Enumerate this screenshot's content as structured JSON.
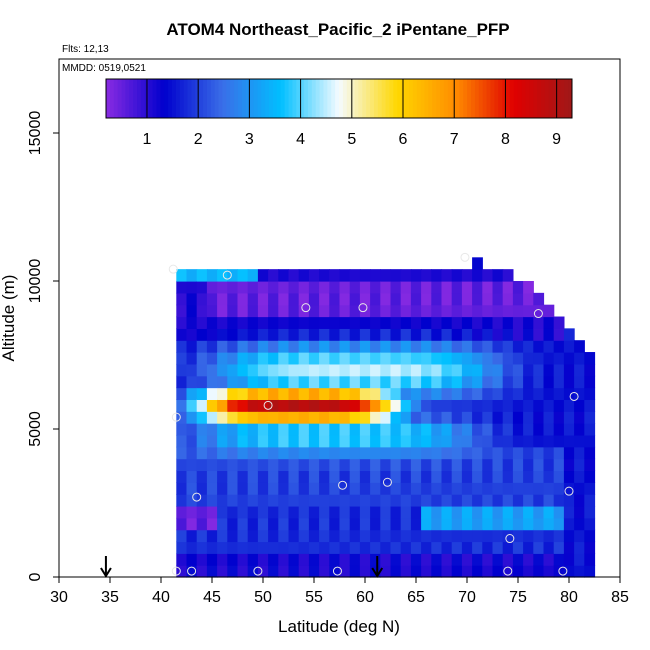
{
  "chart_data": {
    "type": "heatmap",
    "title": "ATOM4 Northeast_Pacific_2 iPentane_PFP",
    "flights_label": "Flts: 12,13",
    "dates_label": "MMDD: 0519,0521",
    "xlabel": "Latitude (deg N)",
    "ylabel": "Altitude (m)",
    "xlim": [
      30,
      85
    ],
    "ylim": [
      0,
      17500
    ],
    "x_ticks": [
      "30",
      "35",
      "40",
      "45",
      "50",
      "55",
      "60",
      "65",
      "70",
      "75",
      "80",
      "85"
    ],
    "y_ticks": [
      "0",
      "5000",
      "10000",
      "15000"
    ],
    "colorbar": {
      "range": [
        0.2,
        9.3
      ],
      "ticks": [
        "1",
        "2",
        "3",
        "4",
        "5",
        "6",
        "7",
        "8",
        "9"
      ],
      "colors": [
        "#8a2be2",
        "#0000cd",
        "#3a6ee8",
        "#00bfff",
        "#f5fbff",
        "#ffd700",
        "#ff8c00",
        "#e00000",
        "#a01818"
      ]
    },
    "colors": {
      "background": "#ffffff",
      "axis": "#000000",
      "sample_marker": "#e8e8e8"
    },
    "curtain": {
      "lat_start": 41.5,
      "lat_step": 1.0,
      "alt_start": 0,
      "alt_step": 400,
      "column_tops": [
        10400,
        10400,
        10400,
        10400,
        10400,
        10400,
        10400,
        10400,
        10400,
        10400,
        10400,
        10400,
        10400,
        10400,
        10400,
        10400,
        10400,
        10400,
        10400,
        10400,
        10400,
        10400,
        10400,
        10400,
        10400,
        10400,
        10400,
        10400,
        10400,
        10800,
        10400,
        10400,
        10400,
        10000,
        10000,
        9600,
        9200,
        8800,
        8400,
        8000,
        7600
      ],
      "blocks": [
        {
          "name": "low-blue",
          "lat": [
            41.5,
            80
          ],
          "alt": [
            0,
            2400
          ],
          "value": 1.8
        },
        {
          "name": "low-dark",
          "lat": [
            41.5,
            80
          ],
          "alt": [
            0,
            800
          ],
          "value": 1.2
        },
        {
          "name": "low-purple-left",
          "lat": [
            41.5,
            46
          ],
          "alt": [
            1600,
            3200
          ],
          "value": 0.5
        },
        {
          "name": "low-light-east",
          "lat": [
            66,
            80
          ],
          "alt": [
            1600,
            4400
          ],
          "value": 3.2
        },
        {
          "name": "mid-blue",
          "lat": [
            41.5,
            80
          ],
          "alt": [
            2400,
            4400
          ],
          "value": 2.0
        },
        {
          "name": "mid-dark",
          "lat": [
            41.5,
            80
          ],
          "alt": [
            8000,
            10400
          ],
          "value": 1.1
        },
        {
          "name": "upper-purple-band",
          "lat": [
            45,
            80
          ],
          "alt": [
            8800,
            10000
          ],
          "value": 0.5
        },
        {
          "name": "top-cyan-left",
          "lat": [
            41.5,
            50
          ],
          "alt": [
            10000,
            10400
          ],
          "value": 3.5
        },
        {
          "name": "top-purple-right",
          "lat": [
            66,
            71
          ],
          "alt": [
            10400,
            10800
          ],
          "value": 0.4
        }
      ],
      "plumes": [
        {
          "name": "upper-plume",
          "lat_center": 59,
          "lat_halfwidth": 14,
          "alt_center": 7000,
          "alt_halfwidth": 1000,
          "peak": 4.5
        },
        {
          "name": "core-plume",
          "lat_center": 53.5,
          "lat_halfwidth": 10,
          "alt_center": 5800,
          "alt_halfwidth": 700,
          "peak": 8.9
        },
        {
          "name": "lower-halo",
          "lat_center": 57,
          "lat_halfwidth": 14,
          "alt_center": 4800,
          "alt_halfwidth": 700,
          "peak": 4.0
        }
      ]
    },
    "samples": [
      {
        "lat": 41.2,
        "alt": 10400
      },
      {
        "lat": 46.5,
        "alt": 10200
      },
      {
        "lat": 69.8,
        "alt": 10800
      },
      {
        "lat": 54.2,
        "alt": 9100
      },
      {
        "lat": 59.8,
        "alt": 9100
      },
      {
        "lat": 77,
        "alt": 8900
      },
      {
        "lat": 80.5,
        "alt": 6100
      },
      {
        "lat": 50.5,
        "alt": 5800
      },
      {
        "lat": 41.5,
        "alt": 5400
      },
      {
        "lat": 43.5,
        "alt": 2700
      },
      {
        "lat": 57.8,
        "alt": 3100
      },
      {
        "lat": 62.2,
        "alt": 3200
      },
      {
        "lat": 80,
        "alt": 2900
      },
      {
        "lat": 74.2,
        "alt": 1300
      },
      {
        "lat": 41.5,
        "alt": 200
      },
      {
        "lat": 43,
        "alt": 200
      },
      {
        "lat": 49.5,
        "alt": 200
      },
      {
        "lat": 57.3,
        "alt": 200
      },
      {
        "lat": 74,
        "alt": 200
      },
      {
        "lat": 79.4,
        "alt": 200
      }
    ],
    "arrows": [
      {
        "lat": 34.6
      },
      {
        "lat": 61.2
      }
    ]
  }
}
